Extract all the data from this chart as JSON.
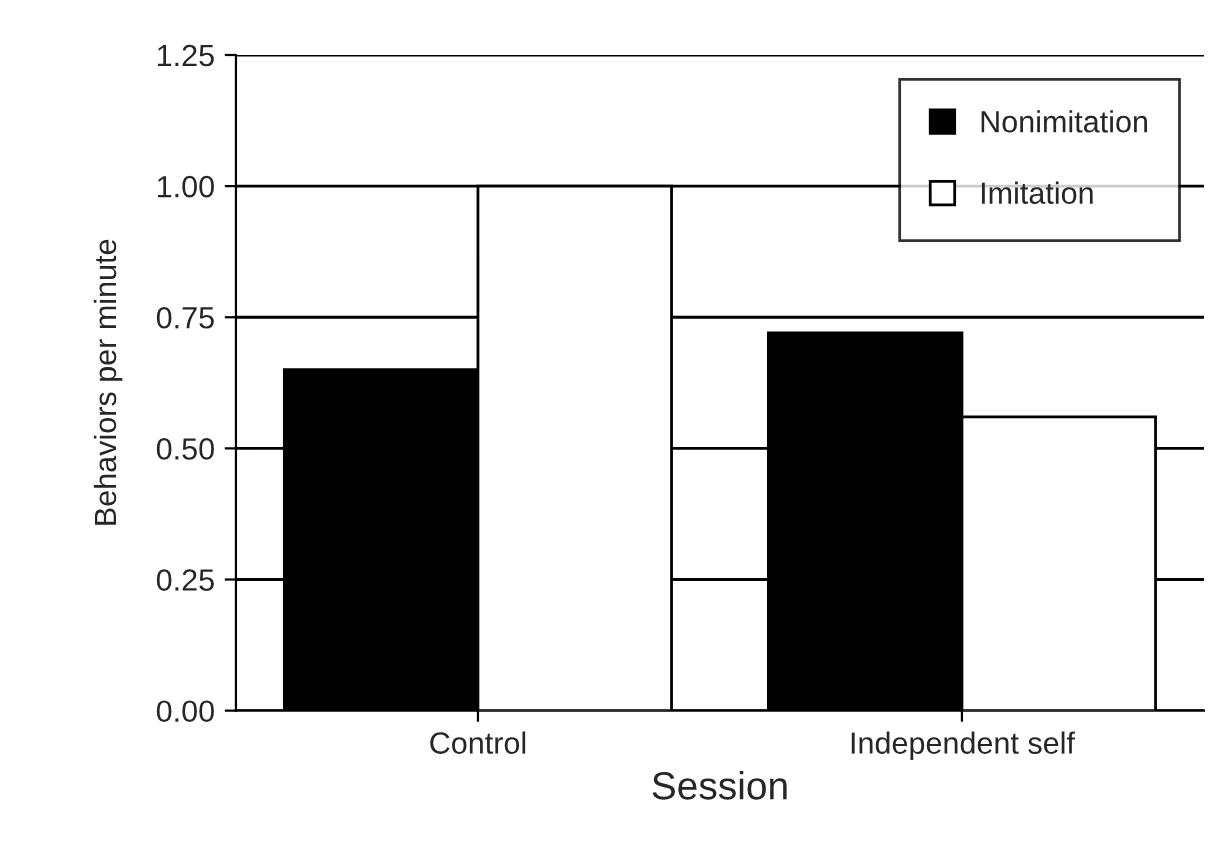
{
  "chart_data": {
    "type": "bar",
    "xlabel": "Session",
    "ylabel": "Behaviors per minute",
    "categories": [
      "Control",
      "Independent self"
    ],
    "series": [
      {
        "name": "Nonimitation",
        "color": "#000000",
        "values": [
          0.65,
          0.72
        ]
      },
      {
        "name": "Imitation",
        "color": "#ffffff",
        "values": [
          1.0,
          0.56
        ]
      }
    ],
    "ylim": [
      0,
      1.25
    ],
    "yticks": [
      {
        "value": 0,
        "label": "0.00"
      },
      {
        "value": 0.25,
        "label": "0.25"
      },
      {
        "value": 0.5,
        "label": "0.50"
      },
      {
        "value": 0.75,
        "label": "0.75"
      },
      {
        "value": 1.0,
        "label": "1.00"
      },
      {
        "value": 1.25,
        "label": "1.25"
      }
    ],
    "grid": "y",
    "legend": "top right"
  }
}
